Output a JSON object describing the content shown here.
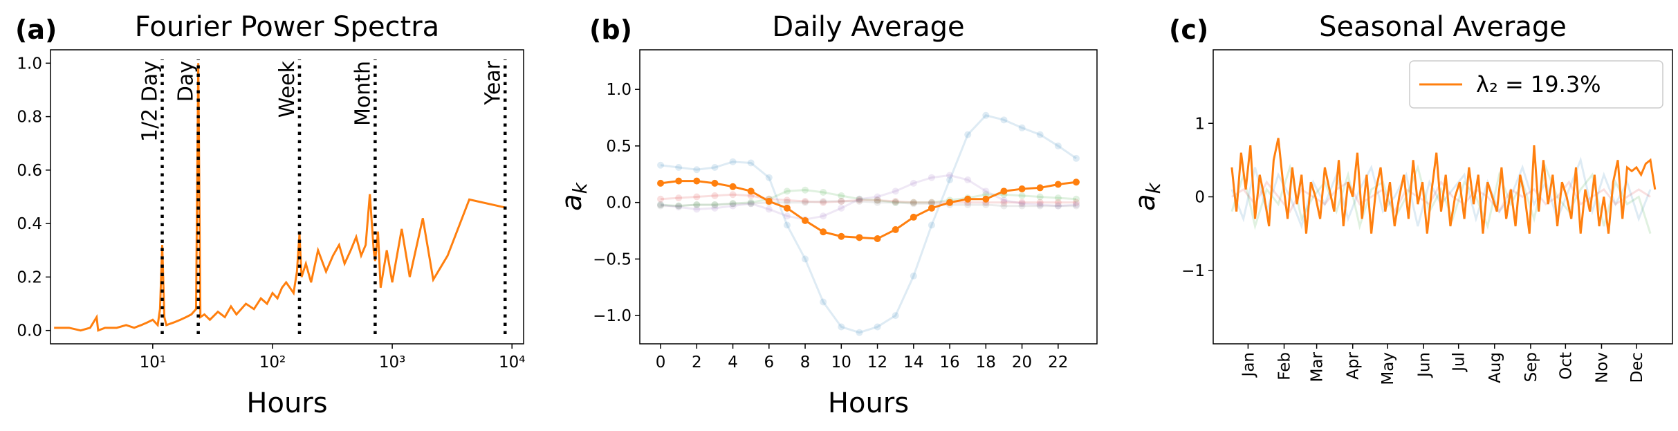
{
  "chart_data": [
    {
      "type": "line",
      "panel_label": "(a)",
      "title": "Fourier Power Spectra",
      "xlabel": "Hours",
      "xscale": "log",
      "xlim": [
        1.4,
        12500
      ],
      "ylim": [
        -0.05,
        1.05
      ],
      "xticks": [
        {
          "value": 10,
          "label": "10¹"
        },
        {
          "value": 100,
          "label": "10²"
        },
        {
          "value": 1000,
          "label": "10³"
        },
        {
          "value": 10000,
          "label": "10⁴"
        }
      ],
      "yticks": [
        {
          "value": 0,
          "label": "0.0"
        },
        {
          "value": 0.2,
          "label": "0.2"
        },
        {
          "value": 0.4,
          "label": "0.4"
        },
        {
          "value": 0.6,
          "label": "0.6"
        },
        {
          "value": 0.8,
          "label": "0.8"
        },
        {
          "value": 1,
          "label": "1.0"
        }
      ],
      "x": [
        1.5,
        2,
        2.5,
        3,
        3.4,
        3.5,
        4,
        5,
        6,
        7,
        8,
        9,
        10,
        11,
        11.5,
        12,
        12.5,
        13,
        15,
        17,
        19,
        21,
        23,
        24,
        25,
        27,
        30,
        35,
        40,
        45,
        50,
        60,
        70,
        80,
        90,
        100,
        110,
        120,
        130,
        150,
        160,
        168,
        175,
        190,
        210,
        240,
        280,
        320,
        360,
        400,
        450,
        500,
        550,
        600,
        650,
        700,
        720,
        760,
        800,
        900,
        1000,
        1200,
        1400,
        1800,
        2200,
        2900,
        4400,
        8760
      ],
      "series": [
        {
          "color": "#ff7f0e",
          "alpha": 1,
          "values": [
            0.01,
            0.01,
            0.0,
            0.01,
            0.05,
            0.0,
            0.01,
            0.01,
            0.02,
            0.01,
            0.02,
            0.03,
            0.04,
            0.02,
            0.08,
            0.32,
            0.05,
            0.02,
            0.03,
            0.04,
            0.05,
            0.06,
            0.08,
            1.0,
            0.05,
            0.06,
            0.04,
            0.07,
            0.05,
            0.09,
            0.06,
            0.1,
            0.08,
            0.12,
            0.1,
            0.14,
            0.12,
            0.16,
            0.18,
            0.14,
            0.22,
            0.36,
            0.2,
            0.25,
            0.18,
            0.3,
            0.22,
            0.28,
            0.32,
            0.25,
            0.3,
            0.35,
            0.28,
            0.32,
            0.51,
            0.3,
            0.26,
            0.37,
            0.16,
            0.3,
            0.18,
            0.38,
            0.2,
            0.42,
            0.19,
            0.28,
            0.49,
            0.46
          ]
        }
      ],
      "vlines": [
        {
          "x": 12,
          "label": "1/2 Day"
        },
        {
          "x": 24,
          "label": "Day"
        },
        {
          "x": 168,
          "label": "Week"
        },
        {
          "x": 720,
          "label": "Month"
        },
        {
          "x": 8760,
          "label": "Year"
        }
      ]
    },
    {
      "type": "line",
      "panel_label": "(b)",
      "title": "Daily Average",
      "xlabel": "Hours",
      "ylabel": [
        "a",
        "k"
      ],
      "markers": true,
      "xlim": [
        -1.15,
        24.15
      ],
      "ylim": [
        -1.25,
        1.35
      ],
      "xticks": [
        0,
        2,
        4,
        6,
        8,
        10,
        12,
        14,
        16,
        18,
        20,
        22
      ],
      "yticks": [
        {
          "value": -1,
          "label": "−1.0"
        },
        {
          "value": -0.5,
          "label": "−0.5"
        },
        {
          "value": 0,
          "label": "0.0"
        },
        {
          "value": 0.5,
          "label": "0.5"
        },
        {
          "value": 1,
          "label": "1.0"
        }
      ],
      "x": [
        0,
        1,
        2,
        3,
        4,
        5,
        6,
        7,
        8,
        9,
        10,
        11,
        12,
        13,
        14,
        15,
        16,
        17,
        18,
        19,
        20,
        21,
        22,
        23
      ],
      "series": [
        {
          "color": "#1f77b4",
          "alpha": 0.15,
          "values": [
            0.33,
            0.31,
            0.29,
            0.31,
            0.36,
            0.35,
            0.22,
            -0.2,
            -0.5,
            -0.88,
            -1.1,
            -1.15,
            -1.1,
            -1.0,
            -0.65,
            -0.2,
            0.2,
            0.6,
            0.77,
            0.73,
            0.66,
            0.6,
            0.5,
            0.39
          ]
        },
        {
          "color": "#2ca02c",
          "alpha": 0.15,
          "values": [
            -0.02,
            -0.03,
            -0.02,
            -0.02,
            -0.01,
            0.0,
            0.03,
            0.1,
            0.11,
            0.09,
            0.06,
            0.03,
            0.02,
            0.0,
            0.0,
            0.0,
            0.02,
            0.04,
            0.07,
            0.07,
            0.06,
            0.05,
            0.04,
            0.03
          ]
        },
        {
          "color": "#d62728",
          "alpha": 0.15,
          "values": [
            0.03,
            0.04,
            0.05,
            0.06,
            0.07,
            0.06,
            0.03,
            0.02,
            0.01,
            0.0,
            0.01,
            0.02,
            0.02,
            0.01,
            0.0,
            0.0,
            0.0,
            0.0,
            0.0,
            0.0,
            0.0,
            0.0,
            0.0,
            0.0
          ]
        },
        {
          "color": "#9467bd",
          "alpha": 0.15,
          "values": [
            -0.02,
            -0.04,
            -0.06,
            -0.05,
            -0.03,
            -0.01,
            -0.06,
            -0.12,
            -0.15,
            -0.12,
            -0.05,
            0.03,
            0.05,
            0.1,
            0.17,
            0.22,
            0.24,
            0.2,
            0.1,
            0.02,
            -0.01,
            -0.02,
            -0.03,
            -0.02
          ]
        },
        {
          "color": "#7f7f7f",
          "alpha": 0.15,
          "values": [
            -0.03,
            -0.03,
            -0.02,
            -0.02,
            -0.01,
            -0.01,
            0.0,
            0.0,
            0.0,
            0.01,
            0.01,
            0.01,
            0.0,
            0.0,
            -0.01,
            -0.01,
            -0.02,
            -0.02,
            -0.02,
            -0.03,
            -0.03,
            -0.03,
            -0.03,
            -0.03
          ]
        },
        {
          "color": "#ff7f0e",
          "alpha": 1,
          "values": [
            0.17,
            0.19,
            0.19,
            0.17,
            0.14,
            0.1,
            0.01,
            -0.05,
            -0.16,
            -0.26,
            -0.3,
            -0.31,
            -0.32,
            -0.24,
            -0.13,
            -0.05,
            0.0,
            0.03,
            0.03,
            0.1,
            0.12,
            0.13,
            0.16,
            0.18
          ]
        }
      ]
    },
    {
      "type": "line",
      "panel_label": "(c)",
      "title": "Seasonal Average",
      "ylabel": [
        "a",
        "k"
      ],
      "legend": "upper right",
      "xtick_rotation": -90,
      "xlim": [
        -15,
        380
      ],
      "ylim": [
        -2,
        2
      ],
      "xticks": [
        {
          "value": 15,
          "label": "Jan"
        },
        {
          "value": 46,
          "label": "Feb"
        },
        {
          "value": 74,
          "label": "Mar"
        },
        {
          "value": 105,
          "label": "Apr"
        },
        {
          "value": 135,
          "label": "May"
        },
        {
          "value": 166,
          "label": "Jun"
        },
        {
          "value": 196,
          "label": "Jul"
        },
        {
          "value": 227,
          "label": "Aug"
        },
        {
          "value": 258,
          "label": "Sep"
        },
        {
          "value": 288,
          "label": "Oct"
        },
        {
          "value": 319,
          "label": "Nov"
        },
        {
          "value": 349,
          "label": "Dec"
        }
      ],
      "yticks": [
        {
          "value": -1,
          "label": "−1"
        },
        0,
        1
      ],
      "series": [
        {
          "color": "#1f77b4",
          "alpha": 0.15,
          "x": [
            1,
            11,
            21,
            31,
            41,
            51,
            61,
            71,
            81,
            91,
            101,
            111,
            121,
            131,
            141,
            151,
            161,
            171,
            181,
            191,
            201,
            211,
            221,
            231,
            241,
            251,
            261,
            271,
            281,
            291,
            301,
            311,
            321,
            331,
            341,
            351,
            361
          ],
          "values": [
            0.1,
            -0.3,
            0.4,
            -0.2,
            0.3,
            0.0,
            -0.4,
            0.2,
            -0.1,
            0.3,
            -0.3,
            0.1,
            0.4,
            -0.2,
            0.0,
            0.3,
            -0.4,
            0.2,
            -0.1,
            0.1,
            0.3,
            -0.3,
            0.2,
            -0.2,
            0.0,
            0.4,
            -0.1,
            0.2,
            -0.3,
            0.1,
            0.5,
            -0.2,
            0.3,
            -0.1,
            0.2,
            -0.3,
            0.1
          ]
        },
        {
          "color": "#2ca02c",
          "alpha": 0.15,
          "x": [
            1,
            11,
            21,
            31,
            41,
            51,
            61,
            71,
            81,
            91,
            101,
            111,
            121,
            131,
            141,
            151,
            161,
            171,
            181,
            191,
            201,
            211,
            221,
            231,
            241,
            251,
            261,
            271,
            281,
            291,
            301,
            311,
            321,
            331,
            341,
            351,
            361
          ],
          "values": [
            -0.2,
            0.3,
            -0.4,
            0.1,
            -0.1,
            0.4,
            -0.3,
            0.0,
            0.2,
            -0.2,
            0.3,
            -0.4,
            0.1,
            0.2,
            -0.3,
            0.0,
            0.4,
            -0.2,
            0.1,
            -0.3,
            0.2,
            0.0,
            -0.4,
            0.3,
            -0.1,
            0.2,
            -0.3,
            0.4,
            0.0,
            -0.2,
            0.1,
            0.3,
            -0.4,
            0.2,
            -0.1,
            0.0,
            -0.5
          ]
        },
        {
          "color": "#d62728",
          "alpha": 0.15,
          "x": [
            1,
            11,
            21,
            31,
            41,
            51,
            61,
            71,
            81,
            91,
            101,
            111,
            121,
            131,
            141,
            151,
            161,
            171,
            181,
            191,
            201,
            211,
            221,
            231,
            241,
            251,
            261,
            271,
            281,
            291,
            301,
            311,
            321,
            331,
            341,
            351,
            361
          ],
          "values": [
            0.0,
            0.1,
            -0.1,
            0.2,
            0.0,
            -0.2,
            0.1,
            0.0,
            -0.1,
            0.1,
            0.2,
            -0.1,
            0.0,
            0.1,
            -0.2,
            0.1,
            0.0,
            -0.1,
            0.2,
            0.0,
            -0.1,
            0.1,
            0.0,
            -0.2,
            0.1,
            0.0,
            0.1,
            -0.1,
            0.0,
            0.2,
            -0.1,
            0.0,
            0.1,
            -0.1,
            0.0,
            0.1,
            0.0
          ]
        },
        {
          "name": "λ₂ = 19.3%",
          "color": "#ff7f0e",
          "alpha": 1,
          "x": [
            1,
            5,
            9,
            13,
            17,
            21,
            25,
            29,
            33,
            37,
            41,
            45,
            49,
            53,
            57,
            61,
            65,
            69,
            73,
            77,
            81,
            85,
            89,
            93,
            97,
            101,
            105,
            109,
            113,
            117,
            121,
            125,
            129,
            133,
            137,
            141,
            145,
            149,
            153,
            157,
            161,
            165,
            169,
            173,
            177,
            181,
            185,
            189,
            193,
            197,
            201,
            205,
            209,
            213,
            217,
            221,
            225,
            229,
            233,
            237,
            241,
            245,
            249,
            253,
            257,
            261,
            265,
            269,
            273,
            277,
            281,
            285,
            289,
            293,
            297,
            301,
            305,
            309,
            313,
            317,
            321,
            325,
            329,
            333,
            337,
            341,
            345,
            349,
            353,
            357,
            361,
            365
          ],
          "values": [
            0.4,
            -0.2,
            0.6,
            0.1,
            0.7,
            -0.3,
            0.3,
            0.0,
            -0.4,
            0.5,
            0.8,
            0.2,
            -0.3,
            0.4,
            -0.1,
            0.3,
            -0.5,
            0.2,
            0.0,
            -0.3,
            0.4,
            0.1,
            -0.2,
            0.5,
            -0.4,
            0.2,
            0.0,
            0.6,
            -0.3,
            0.3,
            -0.5,
            0.1,
            0.4,
            -0.2,
            0.2,
            -0.4,
            0.0,
            0.3,
            -0.3,
            0.5,
            -0.1,
            0.2,
            -0.5,
            0.1,
            0.6,
            -0.2,
            0.3,
            -0.4,
            0.0,
            0.2,
            -0.3,
            0.4,
            -0.1,
            0.3,
            -0.5,
            0.2,
            0.0,
            -0.2,
            0.4,
            -0.3,
            0.1,
            -0.4,
            0.3,
            0.0,
            -0.5,
            0.7,
            -0.2,
            0.5,
            -0.1,
            0.3,
            -0.4,
            0.2,
            0.0,
            -0.3,
            0.4,
            -0.5,
            0.1,
            -0.2,
            0.3,
            -0.4,
            0.0,
            -0.5,
            0.2,
            0.5,
            -0.3,
            0.4,
            0.35,
            0.4,
            0.3,
            0.45,
            0.5,
            0.1
          ]
        }
      ]
    }
  ]
}
